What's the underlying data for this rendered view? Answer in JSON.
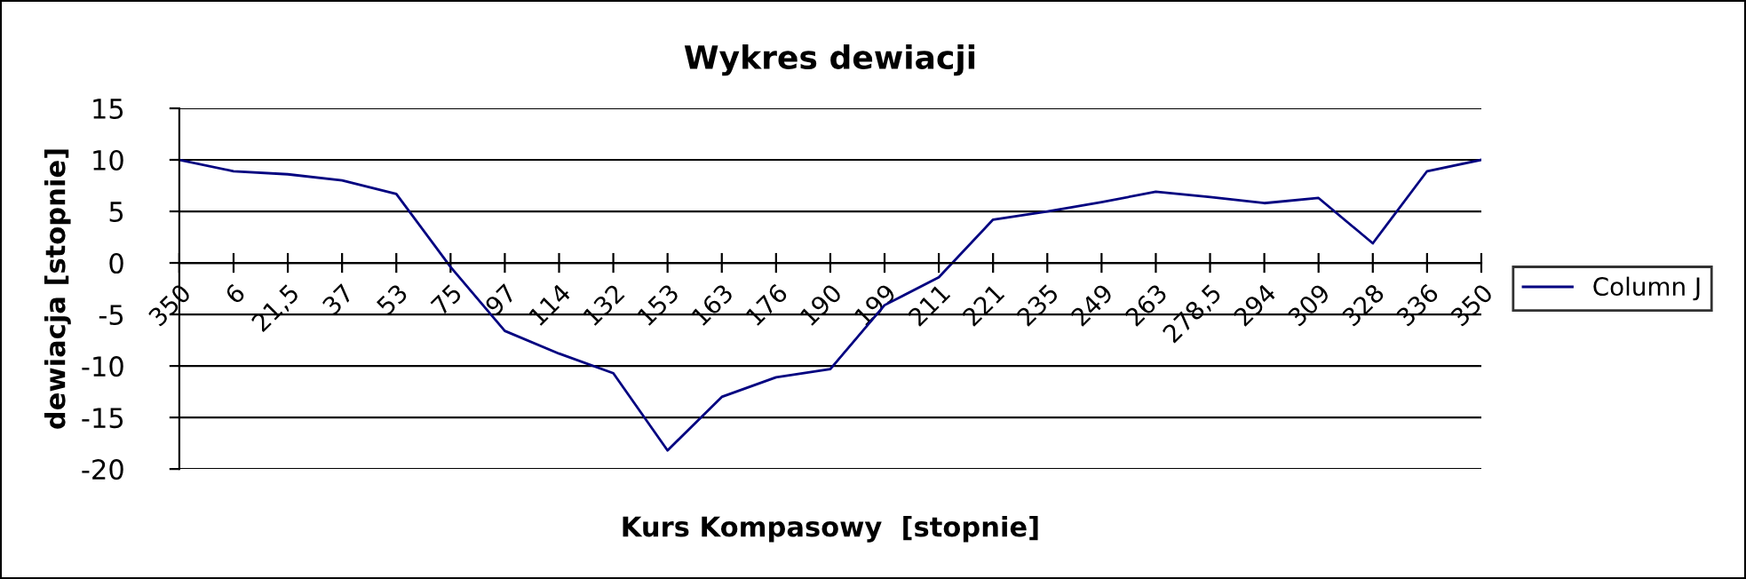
{
  "chart_data": {
    "type": "line",
    "title": "Wykres dewiacji",
    "xlabel": "Kurs Kompasowy  [stopnie]",
    "ylabel": "dewiacja [stopnie]",
    "categories": [
      "350",
      "6",
      "21,5",
      "37",
      "53",
      "75",
      "97",
      "114",
      "132",
      "153",
      "163",
      "176",
      "190",
      "199",
      "211",
      "221",
      "235",
      "249",
      "263",
      "278,5",
      "294",
      "309",
      "328",
      "336",
      "350"
    ],
    "series": [
      {
        "name": "Column J",
        "color": "#000080",
        "values": [
          10,
          8.9,
          8.6,
          8.0,
          6.7,
          -0.4,
          -6.6,
          -8.8,
          -10.7,
          -18.2,
          -13,
          -11.1,
          -10.3,
          -4.1,
          -1.4,
          4.2,
          5,
          5.9,
          6.9,
          6.4,
          5.8,
          6.3,
          1.9,
          8.9,
          10
        ]
      }
    ],
    "ylim": [
      -20,
      15
    ],
    "yticks": [
      -20,
      -15,
      -10,
      -5,
      0,
      5,
      10,
      15
    ],
    "grid": "y",
    "legend": "right",
    "marker": "none",
    "line_style": "solid"
  }
}
